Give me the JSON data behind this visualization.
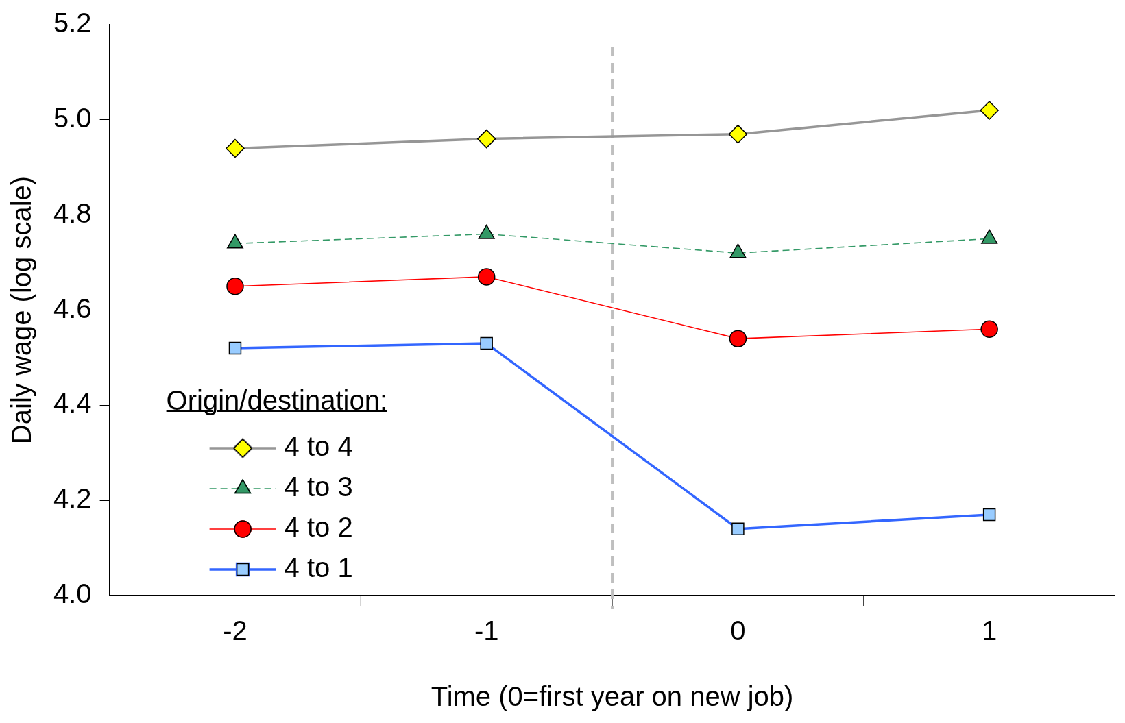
{
  "chart_data": {
    "type": "line",
    "xlabel": "Time (0=first year on new job)",
    "ylabel": "Daily wage (log scale)",
    "legend_title": "Origin/destination:",
    "legend": "bottom left",
    "grid": false,
    "x": [
      -2,
      -1,
      0,
      1
    ],
    "xlim": [
      -2.5,
      1.5
    ],
    "xticks": [
      -2,
      -1,
      0,
      1
    ],
    "ylim": [
      4.0,
      5.2
    ],
    "yticks": [
      {
        "value": 4.0,
        "label": "4.0"
      },
      {
        "value": 4.2,
        "label": "4.2"
      },
      {
        "value": 4.4,
        "label": "4.4"
      },
      {
        "value": 4.6,
        "label": "4.6"
      },
      {
        "value": 4.8,
        "label": "4.8"
      },
      {
        "value": 5.0,
        "label": "5.0"
      },
      {
        "value": 5.2,
        "label": "5.2"
      }
    ],
    "ref_lines": [
      {
        "axis": "x",
        "value": -0.5,
        "color": "#bfbfbf",
        "line_style": "dashed"
      }
    ],
    "series": [
      {
        "name": "4 to 4",
        "color": "#969696",
        "colors": [
          "#ffff00",
          "#ffff00",
          "#ffff00",
          "#ffff00"
        ],
        "marker": "diamond",
        "line_style": "solid",
        "values": [
          4.94,
          4.96,
          4.97,
          5.02
        ]
      },
      {
        "name": "4 to 3",
        "color": "#339966",
        "colors": [
          "#339966",
          "#339966",
          "#339966",
          "#339966"
        ],
        "marker": "triangle",
        "line_style": "dashed",
        "values": [
          4.74,
          4.76,
          4.72,
          4.75
        ]
      },
      {
        "name": "4 to 2",
        "color": "#ff0000",
        "colors": [
          "#ff0000",
          "#ff0000",
          "#ff0000",
          "#ff0000"
        ],
        "marker": "circle",
        "line_style": "solid",
        "values": [
          4.65,
          4.67,
          4.54,
          4.56
        ]
      },
      {
        "name": "4 to 1",
        "color": "#3366ff",
        "colors": [
          "#99ccff",
          "#99ccff",
          "#99ccff",
          "#99ccff"
        ],
        "marker": "square",
        "line_style": "solid",
        "values": [
          4.52,
          4.53,
          4.14,
          4.17
        ]
      }
    ]
  }
}
